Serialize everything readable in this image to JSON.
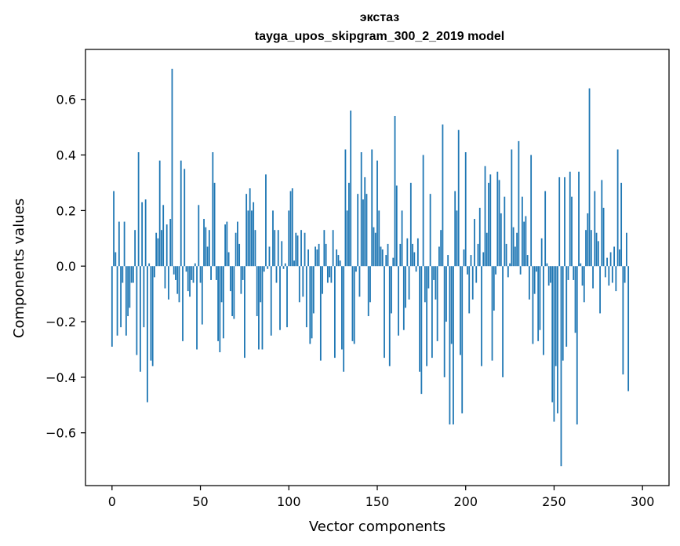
{
  "chart_data": {
    "type": "bar",
    "title": "экстаз",
    "subtitle": "tayga_upos_skipgram_300_2_2019 model",
    "xlabel": "Vector components",
    "ylabel": "Components values",
    "xlim": [
      -15,
      315
    ],
    "ylim": [
      -0.79,
      0.78
    ],
    "xticks": [
      0,
      50,
      100,
      150,
      200,
      250,
      300
    ],
    "xtick_labels": [
      "0",
      "50",
      "100",
      "150",
      "200",
      "250",
      "300"
    ],
    "yticks": [
      -0.6,
      -0.4,
      -0.2,
      0.0,
      0.2,
      0.4,
      0.6
    ],
    "ytick_labels": [
      "−0.6",
      "−0.4",
      "−0.2",
      "0.0",
      "0.2",
      "0.4",
      "0.6"
    ],
    "grid": false,
    "bar_color": "#1f77b4",
    "x": "0..299",
    "values": [
      -0.29,
      0.27,
      0.05,
      -0.25,
      0.16,
      -0.22,
      -0.06,
      0.16,
      -0.25,
      -0.18,
      -0.15,
      -0.06,
      -0.06,
      0.13,
      -0.32,
      0.41,
      -0.38,
      0.23,
      -0.22,
      0.24,
      -0.49,
      0.01,
      -0.34,
      -0.36,
      -0.04,
      0.12,
      0.1,
      0.38,
      0.13,
      0.22,
      -0.08,
      0.15,
      -0.12,
      0.17,
      0.71,
      -0.03,
      -0.05,
      -0.1,
      -0.13,
      0.38,
      -0.27,
      0.35,
      -0.02,
      -0.09,
      -0.11,
      -0.05,
      -0.06,
      0.01,
      -0.3,
      0.22,
      -0.06,
      -0.21,
      0.17,
      0.14,
      0.07,
      0.13,
      -0.05,
      0.41,
      0.3,
      -0.05,
      -0.27,
      -0.31,
      -0.13,
      -0.26,
      0.15,
      0.16,
      0.05,
      -0.09,
      -0.18,
      -0.19,
      0.12,
      0.16,
      0.08,
      -0.1,
      -0.05,
      -0.33,
      0.26,
      0.2,
      0.28,
      0.2,
      0.23,
      0.13,
      -0.18,
      -0.3,
      -0.13,
      -0.3,
      -0.02,
      0.33,
      -0.01,
      0.07,
      -0.25,
      0.2,
      0.13,
      -0.06,
      0.13,
      -0.23,
      0.09,
      -0.01,
      0.01,
      -0.22,
      0.2,
      0.27,
      0.28,
      0.02,
      0.12,
      0.11,
      -0.13,
      0.13,
      -0.11,
      0.12,
      -0.22,
      0.06,
      -0.28,
      -0.26,
      -0.17,
      0.07,
      0.06,
      0.08,
      -0.34,
      -0.1,
      0.13,
      0.08,
      -0.06,
      -0.04,
      -0.06,
      0.13,
      -0.33,
      0.06,
      0.04,
      0.02,
      -0.3,
      -0.38,
      0.42,
      0.2,
      0.3,
      0.56,
      -0.27,
      -0.28,
      -0.02,
      0.26,
      -0.11,
      0.41,
      0.24,
      0.32,
      0.26,
      -0.18,
      -0.13,
      0.42,
      0.14,
      0.12,
      0.38,
      0.2,
      0.07,
      0.06,
      -0.33,
      0.04,
      0.08,
      -0.36,
      -0.17,
      0.03,
      0.54,
      0.29,
      -0.25,
      0.08,
      0.2,
      -0.23,
      -0.15,
      0.1,
      -0.12,
      0.3,
      0.08,
      0.05,
      -0.02,
      0.1,
      -0.38,
      -0.46,
      0.4,
      -0.13,
      -0.36,
      -0.08,
      0.26,
      -0.33,
      -0.05,
      -0.12,
      -0.27,
      0.07,
      0.13,
      0.51,
      -0.4,
      -0.2,
      0.04,
      -0.57,
      -0.28,
      -0.57,
      0.27,
      0.2,
      0.49,
      -0.32,
      -0.53,
      0.06,
      0.41,
      -0.03,
      -0.17,
      0.04,
      -0.12,
      0.17,
      -0.06,
      0.08,
      0.21,
      -0.36,
      0.05,
      0.36,
      0.12,
      0.3,
      0.33,
      -0.34,
      -0.16,
      -0.03,
      0.34,
      0.31,
      0.19,
      -0.4,
      0.25,
      0.08,
      -0.04,
      0.01,
      0.42,
      0.14,
      0.07,
      0.12,
      0.45,
      -0.03,
      0.25,
      0.16,
      0.18,
      0.04,
      -0.12,
      0.4,
      -0.28,
      -0.1,
      -0.02,
      -0.27,
      -0.23,
      0.1,
      -0.32,
      0.27,
      0.01,
      -0.07,
      -0.06,
      -0.49,
      -0.56,
      -0.36,
      -0.53,
      0.32,
      -0.72,
      -0.34,
      0.32,
      -0.29,
      -0.05,
      0.34,
      0.25,
      -0.05,
      -0.24,
      -0.57,
      0.34,
      0.01,
      -0.07,
      -0.13,
      0.13,
      0.19,
      0.64,
      0.13,
      -0.08,
      0.27,
      0.12,
      0.09,
      -0.17,
      0.31,
      0.21,
      -0.04,
      0.03,
      -0.07,
      0.05,
      -0.06,
      0.07,
      -0.09,
      0.42,
      0.06,
      0.3,
      -0.39,
      -0.06,
      0.12,
      -0.45
    ]
  }
}
